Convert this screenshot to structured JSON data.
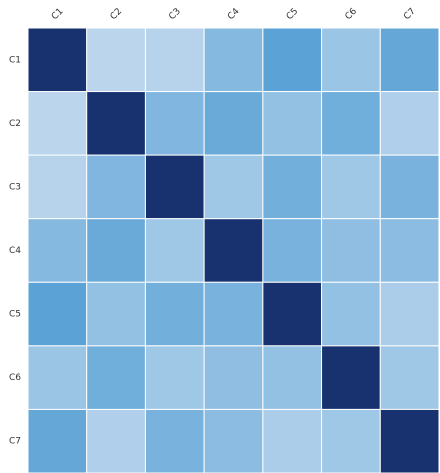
{
  "chart_data": {
    "type": "heatmap",
    "title": "",
    "xlabel": "",
    "ylabel": "",
    "x_categories": [
      "C1",
      "C2",
      "C3",
      "C4",
      "C5",
      "C6",
      "C7"
    ],
    "y_categories": [
      "C1",
      "C2",
      "C3",
      "C4",
      "C5",
      "C6",
      "C7"
    ],
    "x_tick_position": "top",
    "x_tick_rotation_deg": -45,
    "legend": "none",
    "grid": false,
    "color_scale": {
      "low": "#c6dbef",
      "mid": "#5ba3d6",
      "high": "#17326e"
    },
    "values": [
      [
        1.0,
        0.06,
        0.08,
        0.33,
        0.55,
        0.22,
        0.5
      ],
      [
        0.06,
        1.0,
        0.36,
        0.48,
        0.26,
        0.44,
        0.12
      ],
      [
        0.08,
        0.36,
        1.0,
        0.2,
        0.43,
        0.2,
        0.4
      ],
      [
        0.33,
        0.48,
        0.2,
        1.0,
        0.4,
        0.28,
        0.3
      ],
      [
        0.55,
        0.26,
        0.43,
        0.4,
        1.0,
        0.26,
        0.14
      ],
      [
        0.22,
        0.44,
        0.2,
        0.28,
        0.26,
        1.0,
        0.2
      ],
      [
        0.5,
        0.12,
        0.4,
        0.3,
        0.14,
        0.2,
        1.0
      ]
    ]
  }
}
